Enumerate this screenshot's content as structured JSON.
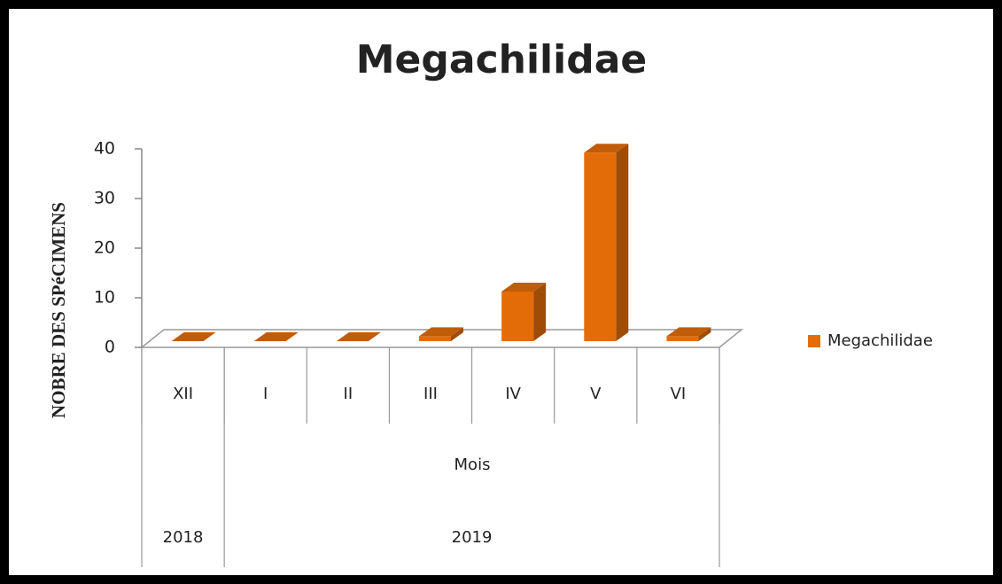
{
  "chart_data": {
    "type": "bar3d",
    "title": "Megachilidae",
    "y_label": "NOBRE DES SPéCIMENS",
    "x_label": "Mois",
    "categories": [
      "XII",
      "I",
      "II",
      "III",
      "IV",
      "V",
      "VI"
    ],
    "groups": [
      {
        "label": "2018",
        "span": 1
      },
      {
        "label": "2019",
        "span": 6
      }
    ],
    "series": [
      {
        "name": "Megachilidae",
        "color": "#e36c09",
        "values": [
          0,
          0,
          0,
          1,
          10,
          38,
          1
        ]
      }
    ],
    "ylim": [
      0,
      40
    ],
    "yticks": [
      0,
      10,
      20,
      30,
      40
    ],
    "legend": "right"
  }
}
